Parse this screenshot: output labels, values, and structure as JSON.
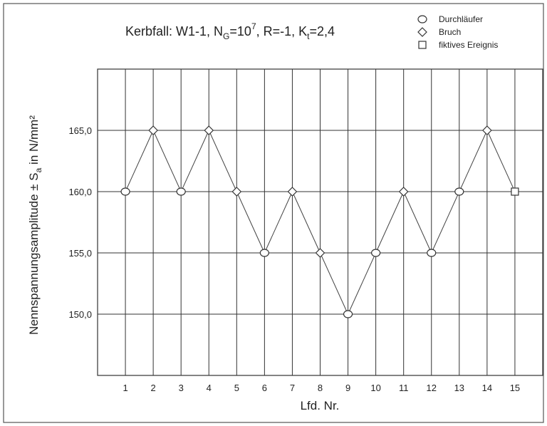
{
  "chart_data": {
    "type": "line",
    "title": "Kerbfall: W1-1, N_G=10^7, R=-1, K_t=2,4",
    "title_parts": {
      "prefix": "Kerbfall: W1-1, N",
      "sub1": "G",
      "eq1": "=10",
      "sup1": "7",
      "mid": ", R=-1, K",
      "sub2": "t",
      "suffix": "=2,4"
    },
    "xlabel": "Lfd. Nr.",
    "ylabel_parts": {
      "main": "Nennspannungsamplitude ± S",
      "sub": "a",
      "unit": " in N/mm²"
    },
    "ylim": [
      145,
      170
    ],
    "yticks": [
      150,
      155,
      160,
      165
    ],
    "ytick_labels": [
      "150,0",
      "155,0",
      "160,0",
      "165,0"
    ],
    "xlim": [
      0,
      16
    ],
    "xticks": [
      1,
      2,
      3,
      4,
      5,
      6,
      7,
      8,
      9,
      10,
      11,
      12,
      13,
      14,
      15
    ],
    "grid": true,
    "legend": {
      "position": "top-right",
      "entries": [
        {
          "marker": "circle",
          "label": "Durchläufer"
        },
        {
          "marker": "diamond",
          "label": "Bruch"
        },
        {
          "marker": "square",
          "label": "fiktives Ereignis"
        }
      ]
    },
    "points": [
      {
        "x": 1,
        "y": 160,
        "marker": "circle"
      },
      {
        "x": 2,
        "y": 165,
        "marker": "diamond"
      },
      {
        "x": 3,
        "y": 160,
        "marker": "circle"
      },
      {
        "x": 4,
        "y": 165,
        "marker": "diamond"
      },
      {
        "x": 5,
        "y": 160,
        "marker": "diamond"
      },
      {
        "x": 6,
        "y": 155,
        "marker": "circle"
      },
      {
        "x": 7,
        "y": 160,
        "marker": "diamond"
      },
      {
        "x": 8,
        "y": 155,
        "marker": "diamond"
      },
      {
        "x": 9,
        "y": 150,
        "marker": "circle"
      },
      {
        "x": 10,
        "y": 155,
        "marker": "circle"
      },
      {
        "x": 11,
        "y": 160,
        "marker": "diamond"
      },
      {
        "x": 12,
        "y": 155,
        "marker": "circle"
      },
      {
        "x": 13,
        "y": 160,
        "marker": "circle"
      },
      {
        "x": 14,
        "y": 165,
        "marker": "diamond"
      },
      {
        "x": 15,
        "y": 160,
        "marker": "square"
      }
    ]
  }
}
